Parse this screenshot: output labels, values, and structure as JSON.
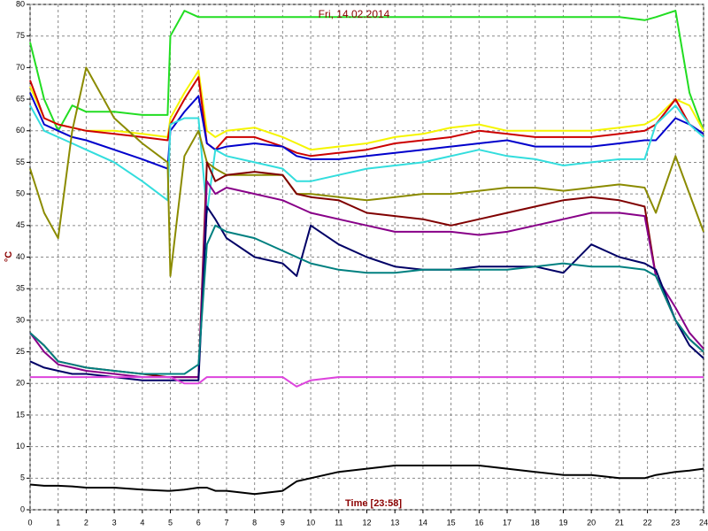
{
  "chart_data": {
    "type": "line",
    "title": "Fri, 14.02.2014",
    "x_label": "Time [23:58]",
    "y_label": "°C",
    "x": [
      0,
      0.5,
      1,
      1.5,
      2,
      3,
      4,
      4.9,
      5,
      5.5,
      6,
      6.3,
      6.6,
      7,
      8,
      9,
      9.5,
      10,
      11,
      12,
      13,
      14,
      15,
      16,
      17,
      18,
      19,
      20,
      21,
      21.9,
      22.3,
      23,
      23.5,
      24
    ],
    "xlim": [
      0,
      24
    ],
    "xticks": [
      0,
      1,
      2,
      3,
      4,
      5,
      6,
      7,
      8,
      9,
      10,
      11,
      12,
      13,
      14,
      15,
      16,
      17,
      18,
      19,
      20,
      21,
      22,
      23,
      24
    ],
    "ylim": [
      0,
      80
    ],
    "yticks": [
      0,
      5,
      10,
      15,
      20,
      25,
      30,
      35,
      40,
      45,
      50,
      55,
      60,
      65,
      70,
      75,
      80
    ],
    "grid": true,
    "series": [
      {
        "color": "#22dd22",
        "values": [
          74,
          65,
          60,
          64,
          63,
          63,
          62.5,
          62.5,
          75,
          79,
          78,
          78,
          78,
          78,
          78,
          78,
          78,
          78,
          78,
          78,
          78,
          78,
          78,
          78,
          78,
          78,
          78,
          78,
          78,
          77.5,
          78,
          79,
          66,
          60
        ]
      },
      {
        "color": "#f5f500",
        "values": [
          67,
          62,
          61,
          60.5,
          60,
          60,
          59.5,
          59,
          62,
          66,
          69.5,
          60,
          59,
          60,
          60.5,
          59,
          58,
          57,
          57.5,
          58,
          59,
          59.5,
          60.5,
          61,
          60,
          60,
          60,
          60,
          60.5,
          61,
          62,
          65,
          64,
          60
        ]
      },
      {
        "color": "#cc0000",
        "values": [
          68,
          62,
          61,
          60.5,
          60,
          59.5,
          59,
          58.5,
          61,
          65,
          68.5,
          58,
          57,
          59,
          59,
          57.5,
          56.5,
          56,
          56.5,
          57,
          58,
          58.5,
          59,
          60,
          59.5,
          59,
          59,
          59,
          59.5,
          60,
          61,
          65,
          61,
          59.5
        ]
      },
      {
        "color": "#0000cc",
        "values": [
          66,
          61,
          60,
          59,
          58.5,
          57,
          55.5,
          54,
          60,
          63,
          65.5,
          58,
          57,
          57.5,
          58,
          57.5,
          56,
          55.5,
          55.5,
          56,
          56.5,
          57,
          57.5,
          58,
          58.5,
          57.5,
          57.5,
          57.5,
          58,
          58.5,
          58.5,
          62,
          61,
          59.5
        ]
      },
      {
        "color": "#33dddd",
        "values": [
          64,
          60,
          59,
          58,
          57,
          55,
          52,
          49,
          61,
          62,
          62,
          47,
          57,
          56,
          55,
          54,
          52,
          52,
          53,
          54,
          54.5,
          55,
          56,
          57,
          56,
          55.5,
          54.5,
          55,
          55.5,
          55.5,
          61,
          64,
          61,
          59
        ]
      },
      {
        "color": "#8b8b00",
        "values": [
          54,
          47,
          43,
          60,
          70,
          62,
          58,
          55,
          37,
          56,
          60,
          55,
          54,
          53,
          53,
          53,
          50,
          50,
          49.5,
          49,
          49.5,
          50,
          50,
          50.5,
          51,
          51,
          50.5,
          51,
          51.5,
          51,
          47,
          56,
          50,
          44
        ]
      },
      {
        "color": "#800000",
        "values": [
          28,
          26,
          23.5,
          23,
          22.5,
          22,
          21.5,
          21,
          21,
          21,
          21,
          55,
          52,
          53,
          53.5,
          53,
          50,
          49.5,
          49,
          47,
          46.5,
          46,
          45,
          46,
          47,
          48,
          49,
          49.5,
          49,
          48,
          37,
          30,
          27,
          25
        ]
      },
      {
        "color": "#880088",
        "values": [
          28,
          25,
          23,
          22.5,
          22,
          21.5,
          21,
          21,
          21,
          21,
          21,
          52,
          50,
          51,
          50,
          49,
          48,
          47,
          46,
          45,
          44,
          44,
          44,
          43.5,
          44,
          45,
          46,
          47,
          47,
          46.5,
          37,
          32,
          28,
          25.5
        ]
      },
      {
        "color": "#000066",
        "values": [
          23.5,
          22.5,
          22,
          21.5,
          21.5,
          21,
          20.5,
          20.5,
          20.5,
          20.5,
          20.5,
          48,
          46,
          43,
          40,
          39,
          37,
          45,
          42,
          40,
          38.5,
          38,
          38,
          38.5,
          38.5,
          38.5,
          37.5,
          42,
          40,
          39,
          38,
          30,
          26,
          24
        ]
      },
      {
        "color": "#008080",
        "values": [
          28,
          26,
          23.5,
          23,
          22.5,
          22,
          21.5,
          21.5,
          21.5,
          21.5,
          23,
          42,
          45,
          44,
          43,
          41,
          40,
          39,
          38,
          37.5,
          37.5,
          38,
          38,
          38,
          38,
          38.5,
          39,
          38.5,
          38.5,
          38,
          37,
          30,
          27,
          25
        ]
      },
      {
        "color": "#dd44dd",
        "values": [
          21,
          21,
          21,
          21,
          21,
          21,
          21,
          21,
          21,
          20,
          20,
          21,
          21,
          21,
          21,
          21,
          19.5,
          20.5,
          21,
          21,
          21,
          21,
          21,
          21,
          21,
          21,
          21,
          21,
          21,
          21,
          21,
          21,
          21,
          21
        ]
      },
      {
        "color": "#000000",
        "values": [
          4,
          3.8,
          3.8,
          3.7,
          3.5,
          3.5,
          3.2,
          3,
          3,
          3.2,
          3.5,
          3.5,
          3,
          3,
          2.5,
          3,
          4.5,
          5,
          6,
          6.5,
          7,
          7,
          7,
          7,
          6.5,
          6,
          5.5,
          5.5,
          5,
          5,
          5.5,
          6,
          6.2,
          6.5
        ]
      }
    ]
  }
}
